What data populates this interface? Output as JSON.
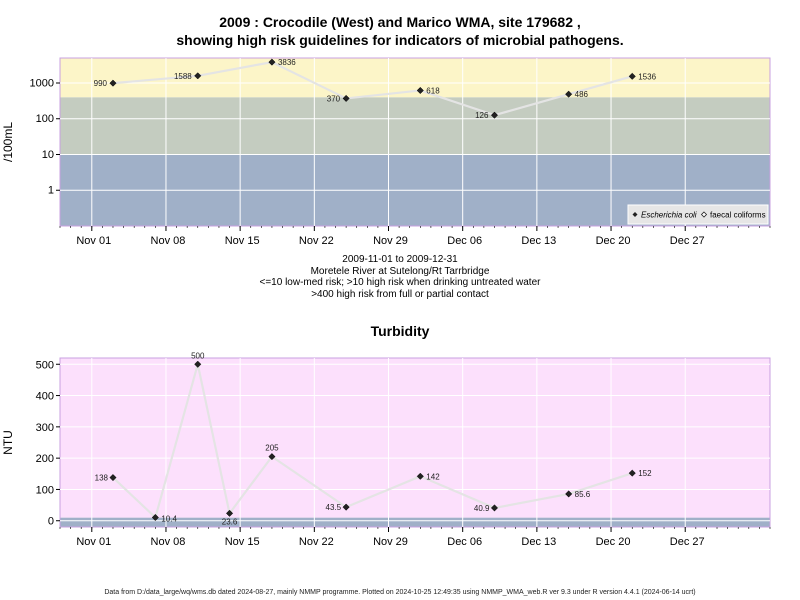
{
  "chart_data": [
    {
      "type": "line",
      "title_line1": "2009 : Crocodile (West) and Marico WMA, site 179682 ,",
      "title_line2": "showing high risk guidelines for indicators of microbial pathogens.",
      "ylabel": "/100mL",
      "yscale": "log",
      "ylim": [
        0.1,
        5000
      ],
      "yticks": [
        "1",
        "10",
        "100",
        "1000"
      ],
      "xticks": [
        "Nov 01",
        "Nov 08",
        "Nov 15",
        "Nov 22",
        "Nov 29",
        "Dec 06",
        "Dec 13",
        "Dec 20",
        "Dec 27"
      ],
      "xlim": [
        "2009-10-29",
        "2010-01-04"
      ],
      "bands": [
        {
          "from": 0.1,
          "to": 10,
          "color": "#a0b0c8"
        },
        {
          "from": 10,
          "to": 400,
          "color": "#c4ccc0"
        },
        {
          "from": 400,
          "to": 5000,
          "color": "#fcf5c8"
        }
      ],
      "series": [
        {
          "name": "Escherichia coli",
          "x": [
            "2009-11-03",
            "2009-11-11",
            "2009-11-18",
            "2009-11-25",
            "2009-12-02",
            "2009-12-09",
            "2009-12-16",
            "2009-12-22"
          ],
          "y": [
            990,
            1588,
            3836,
            370,
            618,
            126,
            486,
            1536
          ],
          "labels": [
            "990",
            "1588",
            "3836",
            "370",
            "618",
            "126",
            "486",
            "1536"
          ]
        }
      ],
      "legend": [
        "Escherichia coli",
        "faecal coliforms"
      ],
      "legend_position": "bottom-right",
      "caption": [
        "2009-11-01 to 2009-12-31",
        "Moretele River at Sutelong/Rt Tarrbridge",
        "<=10 low-med risk; >10 high risk when drinking untreated water",
        ">400 high risk from full or partial contact"
      ]
    },
    {
      "type": "line",
      "title": "Turbidity",
      "ylabel": "NTU",
      "ylim": [
        -20,
        520
      ],
      "yticks": [
        "0",
        "100",
        "200",
        "300",
        "400",
        "500"
      ],
      "xticks": [
        "Nov 01",
        "Nov 08",
        "Nov 15",
        "Nov 22",
        "Nov 29",
        "Dec 06",
        "Dec 13",
        "Dec 20",
        "Dec 27"
      ],
      "xlim": [
        "2009-10-29",
        "2010-01-04"
      ],
      "bands": [
        {
          "from": -20,
          "to": 10,
          "color": "#a0b0c8"
        },
        {
          "from": 10,
          "to": 520,
          "color": "#fce0fc"
        }
      ],
      "series": [
        {
          "name": "",
          "x": [
            "2009-11-03",
            "2009-11-07",
            "2009-11-11",
            "2009-11-14",
            "2009-11-18",
            "2009-11-25",
            "2009-12-02",
            "2009-12-09",
            "2009-12-16",
            "2009-12-22"
          ],
          "y": [
            138,
            10.4,
            500,
            23.6,
            205,
            43.5,
            142,
            40.9,
            85.6,
            152
          ],
          "labels": [
            "138",
            "10.4",
            "500",
            "23.6",
            "205",
            "43.5",
            "142",
            "40.9",
            "85.6",
            "152"
          ]
        }
      ]
    }
  ],
  "footer": "Data from D:/data_large/wq/wms.db dated 2024-08-27, mainly NMMP programme. Plotted on 2024-10-25 12:49:35 using NMMP_WMA_web.R ver 9.3 under R version 4.4.1 (2024-06-14 ucrt)"
}
